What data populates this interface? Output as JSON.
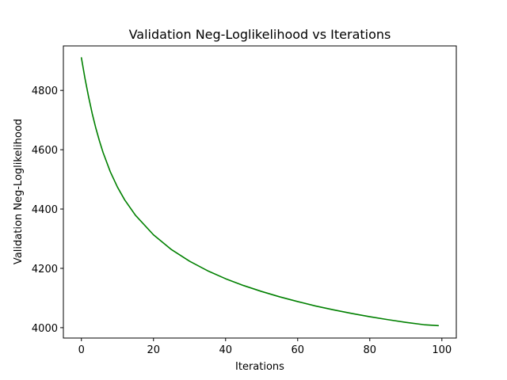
{
  "chart_data": {
    "type": "line",
    "title": "Validation Neg-Loglikelihood vs Iterations",
    "xlabel": "Iterations",
    "ylabel": "Validation Neg-Loglikelihood",
    "xlim": [
      -5,
      104
    ],
    "ylim": [
      3965,
      4950
    ],
    "xticks": [
      0,
      20,
      40,
      60,
      80,
      100
    ],
    "yticks": [
      4000,
      4200,
      4400,
      4600,
      4800
    ],
    "grid": false,
    "series": [
      {
        "color": "#008000",
        "x": [
          0,
          1,
          2,
          3,
          4,
          5,
          6,
          8,
          10,
          12,
          15,
          20,
          25,
          30,
          35,
          40,
          45,
          50,
          55,
          60,
          65,
          70,
          75,
          80,
          85,
          90,
          95,
          99
        ],
        "y": [
          4910,
          4840,
          4778,
          4722,
          4673,
          4630,
          4591,
          4526,
          4474,
          4431,
          4379,
          4313,
          4263,
          4224,
          4192,
          4165,
          4142,
          4122,
          4104,
          4088,
          4073,
          4060,
          4048,
          4037,
          4027,
          4018,
          4010,
          4007
        ]
      }
    ]
  }
}
